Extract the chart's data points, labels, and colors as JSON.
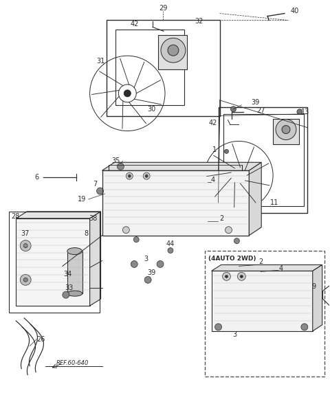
{
  "bg_color": "#ffffff",
  "line_color": "#2a2a2a",
  "fig_width": 4.8,
  "fig_height": 5.72,
  "dpi": 100
}
